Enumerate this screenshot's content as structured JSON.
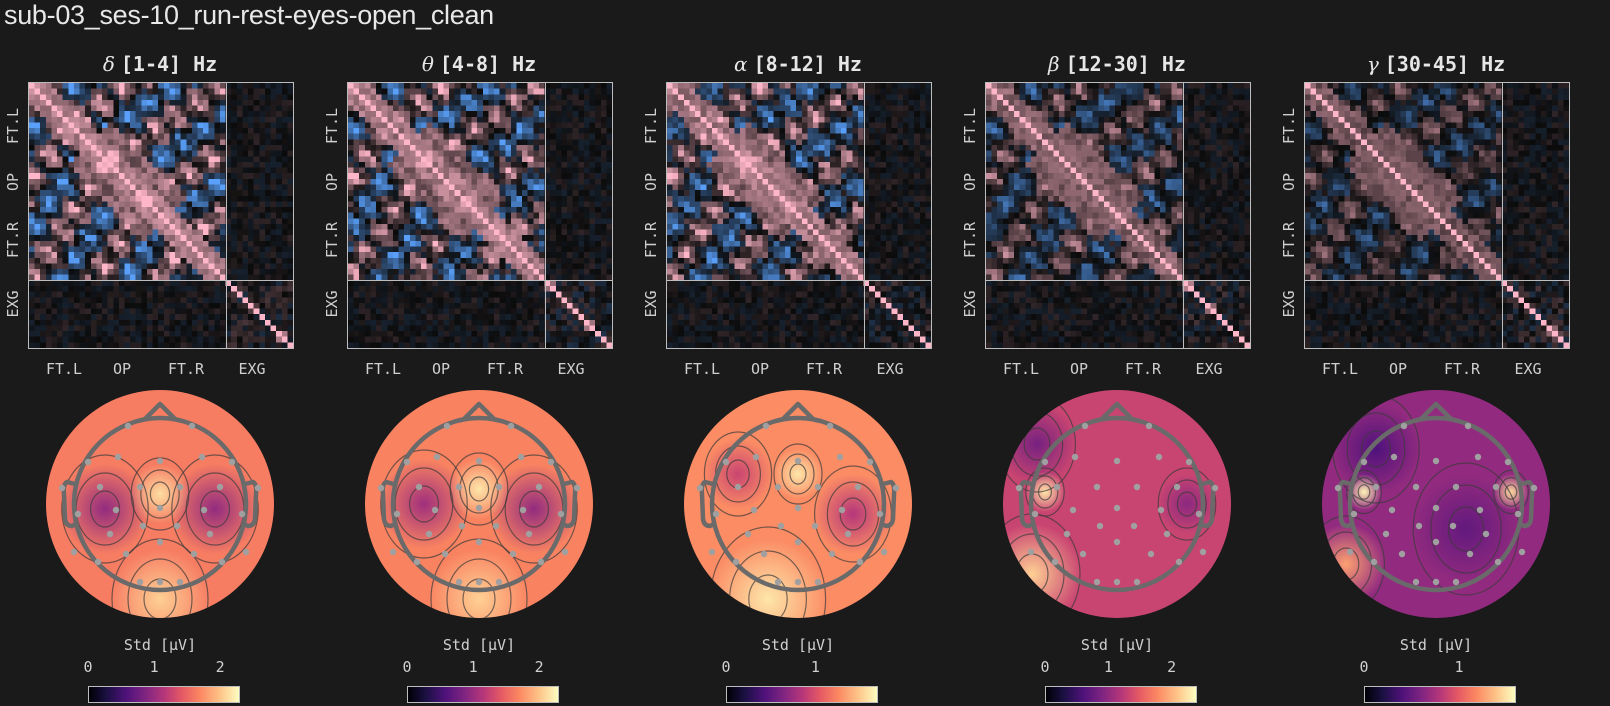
{
  "title": "sub-03_ses-10_run-rest-eyes-open_clean",
  "colors": {
    "background": "#1a1a1a",
    "text": "#e6e6e6",
    "frame": "#bdbdbd",
    "corr_positive": "#ffb6c8",
    "corr_negative": "#4a8fe8",
    "corr_zero": "#0b0b0b",
    "head_outline": "#6a6a6a",
    "sensor_dot": "#a0a0a0"
  },
  "chart_data": [
    {
      "type": "heatmap",
      "band": "delta",
      "greek": "δ",
      "range": "[1-4] Hz",
      "title": "δ [1-4] Hz",
      "x_tick_labels": [
        "FT.L",
        "OP",
        "FT.R",
        "EXG"
      ],
      "y_tick_labels": [
        "FT.L",
        "OP",
        "FT.R",
        "EXG"
      ],
      "matrix_blocks": {
        "eeg_channels": 35,
        "exg_channels": 12
      },
      "colormap": "blue-black-pink diverging (correlation)",
      "topomap": {
        "colorbar_label": "Std [μV]",
        "colorbar_ticks": [
          "0",
          "1",
          "2"
        ],
        "vmin": 0,
        "vmax": 2.3,
        "colormap": "magma",
        "pattern": "high midline, low bilateral temporal",
        "mean_level": 0.72
      }
    },
    {
      "type": "heatmap",
      "band": "theta",
      "greek": "θ",
      "range": "[4-8] Hz",
      "title": "θ [4-8] Hz",
      "x_tick_labels": [
        "FT.L",
        "OP",
        "FT.R",
        "EXG"
      ],
      "y_tick_labels": [
        "FT.L",
        "OP",
        "FT.R",
        "EXG"
      ],
      "matrix_blocks": {
        "eeg_channels": 35,
        "exg_channels": 12
      },
      "colormap": "blue-black-pink diverging (correlation)",
      "topomap": {
        "colorbar_label": "Std [μV]",
        "colorbar_ticks": [
          "0",
          "1",
          "2"
        ],
        "vmin": 0,
        "vmax": 2.3,
        "colormap": "magma",
        "pattern": "high midline, low bilateral temporal",
        "mean_level": 0.74
      }
    },
    {
      "type": "heatmap",
      "band": "alpha",
      "greek": "α",
      "range": "[8-12] Hz",
      "title": "α [8-12] Hz",
      "x_tick_labels": [
        "FT.L",
        "OP",
        "FT.R",
        "EXG"
      ],
      "y_tick_labels": [
        "FT.L",
        "OP",
        "FT.R",
        "EXG"
      ],
      "matrix_blocks": {
        "eeg_channels": 35,
        "exg_channels": 12
      },
      "colormap": "blue-black-pink diverging (correlation)",
      "topomap": {
        "colorbar_label": "Std [μV]",
        "colorbar_ticks": [
          "0",
          "1"
        ],
        "vmin": 0,
        "vmax": 1.7,
        "colormap": "magma",
        "pattern": "high central/posterior, lower lateral",
        "mean_level": 0.76
      }
    },
    {
      "type": "heatmap",
      "band": "beta",
      "greek": "β",
      "range": "[12-30] Hz",
      "title": "β [12-30] Hz",
      "x_tick_labels": [
        "FT.L",
        "OP",
        "FT.R",
        "EXG"
      ],
      "y_tick_labels": [
        "FT.L",
        "OP",
        "FT.R",
        "EXG"
      ],
      "matrix_blocks": {
        "eeg_channels": 35,
        "exg_channels": 12
      },
      "colormap": "blue-black-pink diverging (correlation)",
      "topomap": {
        "colorbar_label": "Std [μV]",
        "colorbar_ticks": [
          "0",
          "1",
          "2"
        ],
        "vmin": 0,
        "vmax": 2.4,
        "colormap": "magma",
        "pattern": "hotspots left temporal, low frontal-left",
        "mean_level": 0.55
      }
    },
    {
      "type": "heatmap",
      "band": "gamma",
      "greek": "γ",
      "range": "[30-45] Hz",
      "title": "γ [30-45] Hz",
      "x_tick_labels": [
        "FT.L",
        "OP",
        "FT.R",
        "EXG"
      ],
      "y_tick_labels": [
        "FT.L",
        "OP",
        "FT.R",
        "EXG"
      ],
      "matrix_blocks": {
        "eeg_channels": 35,
        "exg_channels": 12
      },
      "colormap": "blue-black-pink diverging (correlation)",
      "topomap": {
        "colorbar_label": "Std [μV]",
        "colorbar_ticks": [
          "0",
          "1"
        ],
        "vmin": 0,
        "vmax": 1.6,
        "colormap": "magma",
        "pattern": "bilateral temporal hotspots, low central",
        "mean_level": 0.42
      }
    }
  ]
}
